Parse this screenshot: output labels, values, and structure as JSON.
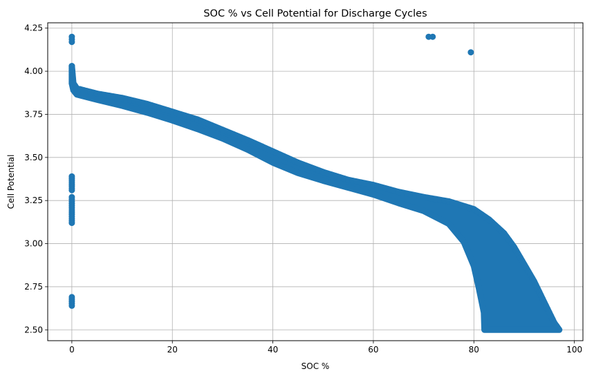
{
  "chart_data": {
    "type": "scatter",
    "title": "SOC %  vs Cell Potential for Discharge Cycles",
    "xlabel": "SOC %",
    "ylabel": "Cell Potential",
    "xlim": [
      -4.8,
      101.7
    ],
    "ylim": [
      2.437,
      4.281
    ],
    "xticks": [
      0,
      20,
      40,
      60,
      80,
      100
    ],
    "yticks": [
      2.5,
      2.75,
      3.0,
      3.25,
      3.5,
      3.75,
      4.0,
      4.25
    ],
    "xtick_labels": [
      "0",
      "20",
      "40",
      "60",
      "80",
      "100"
    ],
    "ytick_labels": [
      "2.50",
      "2.75",
      "3.00",
      "3.25",
      "3.50",
      "3.75",
      "4.00",
      "4.25"
    ],
    "grid": true,
    "marker_color": "#1f77b4",
    "series": [
      {
        "envelope_upper": [
          [
            0.0,
            4.03
          ],
          [
            0.3,
            3.93
          ],
          [
            1,
            3.9
          ],
          [
            3,
            3.885
          ],
          [
            5,
            3.87
          ],
          [
            10,
            3.845
          ],
          [
            15,
            3.81
          ],
          [
            20,
            3.765
          ],
          [
            25,
            3.72
          ],
          [
            30,
            3.66
          ],
          [
            35,
            3.6
          ],
          [
            40,
            3.535
          ],
          [
            45,
            3.47
          ],
          [
            50,
            3.415
          ],
          [
            55,
            3.37
          ],
          [
            60,
            3.34
          ],
          [
            65,
            3.3
          ],
          [
            70,
            3.27
          ],
          [
            75,
            3.245
          ],
          [
            80,
            3.2
          ],
          [
            83,
            3.14
          ],
          [
            86,
            3.06
          ],
          [
            88,
            2.98
          ],
          [
            90,
            2.88
          ],
          [
            92,
            2.78
          ],
          [
            94,
            2.66
          ],
          [
            96,
            2.54
          ],
          [
            97.0,
            2.5
          ]
        ],
        "envelope_lower": [
          [
            0.0,
            3.93
          ],
          [
            0.3,
            3.89
          ],
          [
            1,
            3.865
          ],
          [
            3,
            3.85
          ],
          [
            5,
            3.835
          ],
          [
            10,
            3.8
          ],
          [
            15,
            3.76
          ],
          [
            20,
            3.715
          ],
          [
            25,
            3.665
          ],
          [
            30,
            3.61
          ],
          [
            35,
            3.545
          ],
          [
            40,
            3.47
          ],
          [
            45,
            3.41
          ],
          [
            50,
            3.365
          ],
          [
            55,
            3.325
          ],
          [
            60,
            3.285
          ],
          [
            65,
            3.235
          ],
          [
            70,
            3.19
          ],
          [
            75,
            3.115
          ],
          [
            78,
            3.01
          ],
          [
            80,
            2.87
          ],
          [
            81,
            2.74
          ],
          [
            82,
            2.6
          ],
          [
            82.1,
            2.5
          ]
        ],
        "clusters_at_zero": [
          {
            "x": 0,
            "y_min": 4.17,
            "y_max": 4.2
          },
          {
            "x": 0,
            "y_min": 3.93,
            "y_max": 4.03
          },
          {
            "x": 0,
            "y_min": 3.31,
            "y_max": 3.39
          },
          {
            "x": 0,
            "y_min": 3.12,
            "y_max": 3.27
          },
          {
            "x": 0,
            "y_min": 2.64,
            "y_max": 2.69
          }
        ],
        "outliers": [
          {
            "x": 71.0,
            "y": 4.2
          },
          {
            "x": 71.8,
            "y": 4.2
          },
          {
            "x": 79.4,
            "y": 4.11
          }
        ]
      }
    ]
  }
}
